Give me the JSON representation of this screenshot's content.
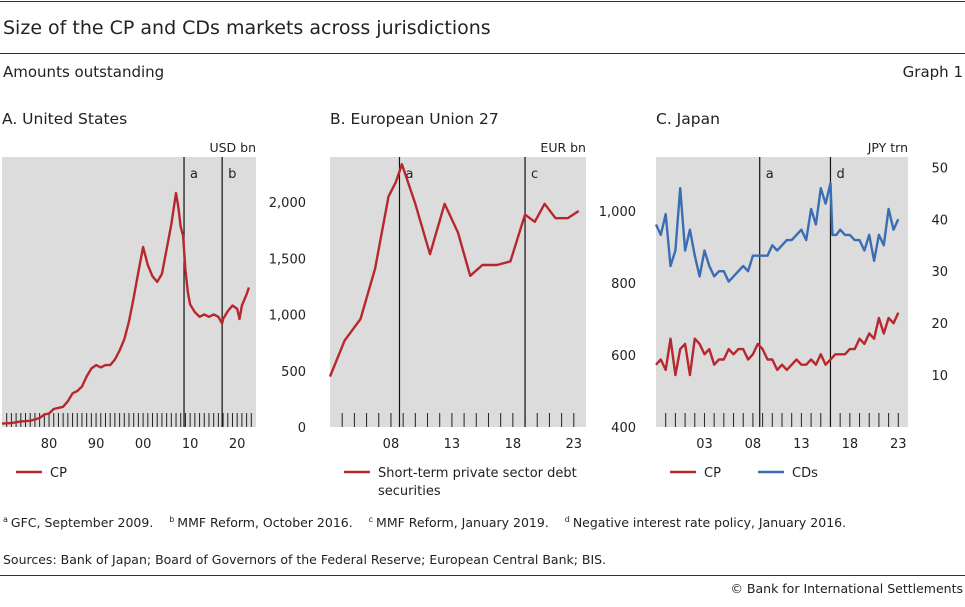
{
  "title": "Size of the CP and CDs markets across jurisdictions",
  "subtitle": "Amounts outstanding",
  "graph_number": "Graph 1",
  "footnotes": [
    {
      "mark": "a",
      "text": "GFC, September 2009."
    },
    {
      "mark": "b",
      "text": "MMF Reform, October 2016."
    },
    {
      "mark": "c",
      "text": "MMF Reform, January 2019."
    },
    {
      "mark": "d",
      "text": "Negative interest rate policy, January 2016."
    }
  ],
  "sources": "Sources: Bank of Japan; Board of Governors of the Federal Reserve; European Central Bank; BIS.",
  "copyright": "© Bank for International Settlements",
  "colors": {
    "cp": "#b7282e",
    "cds": "#3b6db4",
    "panel_bg": "#dcdcdc"
  },
  "chart_data": [
    {
      "type": "line",
      "title": "A. United States",
      "unit": "USD bn",
      "xlim": [
        1970,
        2024
      ],
      "ylim": [
        0,
        2400
      ],
      "yticks": [
        0,
        500,
        1000,
        1500,
        2000
      ],
      "ytick_labels": [
        "0",
        "500",
        "1,000",
        "1,500",
        "2,000"
      ],
      "xticks": [
        1980,
        1990,
        2000,
        2010,
        2020
      ],
      "xtick_labels": [
        "80",
        "90",
        "00",
        "10",
        "20"
      ],
      "grid": false,
      "events": [
        {
          "label": "a",
          "x": 2008.7
        },
        {
          "label": "b",
          "x": 2016.8
        }
      ],
      "legend": [
        "CP"
      ],
      "series": [
        {
          "name": "CP",
          "color": "#b7282e",
          "points": [
            [
              1970,
              30
            ],
            [
              1972,
              35
            ],
            [
              1974,
              50
            ],
            [
              1976,
              55
            ],
            [
              1978,
              80
            ],
            [
              1979,
              110
            ],
            [
              1980,
              120
            ],
            [
              1981,
              160
            ],
            [
              1982,
              170
            ],
            [
              1983,
              180
            ],
            [
              1984,
              230
            ],
            [
              1985,
              300
            ],
            [
              1986,
              320
            ],
            [
              1987,
              360
            ],
            [
              1988,
              450
            ],
            [
              1989,
              520
            ],
            [
              1990,
              550
            ],
            [
              1991,
              530
            ],
            [
              1992,
              550
            ],
            [
              1993,
              550
            ],
            [
              1994,
              600
            ],
            [
              1995,
              680
            ],
            [
              1996,
              780
            ],
            [
              1997,
              940
            ],
            [
              1998,
              1150
            ],
            [
              1999,
              1380
            ],
            [
              2000,
              1600
            ],
            [
              2001,
              1440
            ],
            [
              2002,
              1340
            ],
            [
              2003,
              1290
            ],
            [
              2004,
              1360
            ],
            [
              2005,
              1580
            ],
            [
              2006,
              1800
            ],
            [
              2007,
              2080
            ],
            [
              2007.5,
              1950
            ],
            [
              2008,
              1780
            ],
            [
              2008.5,
              1700
            ],
            [
              2009,
              1400
            ],
            [
              2009.5,
              1200
            ],
            [
              2010,
              1090
            ],
            [
              2011,
              1020
            ],
            [
              2012,
              980
            ],
            [
              2013,
              1000
            ],
            [
              2014,
              980
            ],
            [
              2015,
              1000
            ],
            [
              2016,
              980
            ],
            [
              2016.8,
              920
            ],
            [
              2017,
              960
            ],
            [
              2018,
              1030
            ],
            [
              2019,
              1080
            ],
            [
              2020,
              1050
            ],
            [
              2020.5,
              960
            ],
            [
              2021,
              1080
            ],
            [
              2022,
              1180
            ],
            [
              2022.5,
              1240
            ]
          ]
        }
      ]
    },
    {
      "type": "line",
      "title": "B. European Union 27",
      "unit": "EUR bn",
      "xlim": [
        2003,
        2024
      ],
      "ylim": [
        400,
        1150
      ],
      "yticks": [
        400,
        600,
        800,
        1000
      ],
      "ytick_labels": [
        "400",
        "600",
        "800",
        "1,000"
      ],
      "xticks": [
        2008,
        2013,
        2018,
        2023
      ],
      "xtick_labels": [
        "08",
        "13",
        "18",
        "23"
      ],
      "grid": false,
      "events": [
        {
          "label": "a",
          "x": 2008.7
        },
        {
          "label": "c",
          "x": 2019
        }
      ],
      "legend": [
        "Short-term private sector debt securities"
      ],
      "series": [
        {
          "name": "Short-term private sector debt securities",
          "color": "#b7282e",
          "points": [
            [
              2003,
              540
            ],
            [
              2004.2,
              640
            ],
            [
              2005.5,
              700
            ],
            [
              2006.7,
              840
            ],
            [
              2007.8,
              1040
            ],
            [
              2008.4,
              1080
            ],
            [
              2008.9,
              1130
            ],
            [
              2010,
              1020
            ],
            [
              2011.2,
              880
            ],
            [
              2012.4,
              1020
            ],
            [
              2013.5,
              940
            ],
            [
              2014.5,
              820
            ],
            [
              2015.5,
              850
            ],
            [
              2016.7,
              850
            ],
            [
              2017.8,
              860
            ],
            [
              2019,
              990
            ],
            [
              2019.8,
              970
            ],
            [
              2020.6,
              1020
            ],
            [
              2021.5,
              980
            ],
            [
              2022.5,
              980
            ],
            [
              2023.4,
              1000
            ]
          ]
        }
      ]
    },
    {
      "type": "line",
      "title": "C. Japan",
      "unit": "JPY trn",
      "xlim": [
        1998,
        2024
      ],
      "ylim": [
        0,
        52
      ],
      "yticks": [
        10,
        20,
        30,
        40,
        50
      ],
      "ytick_labels": [
        "10",
        "20",
        "30",
        "40",
        "50"
      ],
      "xticks": [
        2003,
        2008,
        2013,
        2018,
        2023
      ],
      "xtick_labels": [
        "03",
        "08",
        "13",
        "18",
        "23"
      ],
      "grid": false,
      "events": [
        {
          "label": "a",
          "x": 2008.7
        },
        {
          "label": "d",
          "x": 2016
        }
      ],
      "legend": [
        "CP",
        "CDs"
      ],
      "series": [
        {
          "name": "CP",
          "color": "#b7282e",
          "points": [
            [
              1998,
              12
            ],
            [
              1998.5,
              13
            ],
            [
              1999,
              11
            ],
            [
              1999.5,
              17
            ],
            [
              2000,
              10
            ],
            [
              2000.5,
              15
            ],
            [
              2001,
              16
            ],
            [
              2001.5,
              10
            ],
            [
              2002,
              17
            ],
            [
              2002.5,
              16
            ],
            [
              2003,
              14
            ],
            [
              2003.5,
              15
            ],
            [
              2004,
              12
            ],
            [
              2004.5,
              13
            ],
            [
              2005,
              13
            ],
            [
              2005.5,
              15
            ],
            [
              2006,
              14
            ],
            [
              2006.5,
              15
            ],
            [
              2007,
              15
            ],
            [
              2007.5,
              13
            ],
            [
              2008,
              14
            ],
            [
              2008.5,
              16
            ],
            [
              2009,
              15
            ],
            [
              2009.5,
              13
            ],
            [
              2010,
              13
            ],
            [
              2010.5,
              11
            ],
            [
              2011,
              12
            ],
            [
              2011.5,
              11
            ],
            [
              2012,
              12
            ],
            [
              2012.5,
              13
            ],
            [
              2013,
              12
            ],
            [
              2013.5,
              12
            ],
            [
              2014,
              13
            ],
            [
              2014.5,
              12
            ],
            [
              2015,
              14
            ],
            [
              2015.5,
              12
            ],
            [
              2016,
              13
            ],
            [
              2016.5,
              14
            ],
            [
              2017,
              14
            ],
            [
              2017.5,
              14
            ],
            [
              2018,
              15
            ],
            [
              2018.5,
              15
            ],
            [
              2019,
              17
            ],
            [
              2019.5,
              16
            ],
            [
              2020,
              18
            ],
            [
              2020.5,
              17
            ],
            [
              2021,
              21
            ],
            [
              2021.5,
              18
            ],
            [
              2022,
              21
            ],
            [
              2022.5,
              20
            ],
            [
              2023,
              22
            ]
          ]
        },
        {
          "name": "CDs",
          "color": "#3b6db4",
          "points": [
            [
              1998,
              39
            ],
            [
              1998.5,
              37
            ],
            [
              1999,
              41
            ],
            [
              1999.5,
              31
            ],
            [
              2000,
              34
            ],
            [
              2000.5,
              46
            ],
            [
              2001,
              34
            ],
            [
              2001.5,
              38
            ],
            [
              2002,
              33
            ],
            [
              2002.5,
              29
            ],
            [
              2003,
              34
            ],
            [
              2003.5,
              31
            ],
            [
              2004,
              29
            ],
            [
              2004.5,
              30
            ],
            [
              2005,
              30
            ],
            [
              2005.5,
              28
            ],
            [
              2006,
              29
            ],
            [
              2006.5,
              30
            ],
            [
              2007,
              31
            ],
            [
              2007.5,
              30
            ],
            [
              2008,
              33
            ],
            [
              2008.5,
              33
            ],
            [
              2009,
              33
            ],
            [
              2009.5,
              33
            ],
            [
              2010,
              35
            ],
            [
              2010.5,
              34
            ],
            [
              2011,
              35
            ],
            [
              2011.5,
              36
            ],
            [
              2012,
              36
            ],
            [
              2012.5,
              37
            ],
            [
              2013,
              38
            ],
            [
              2013.5,
              36
            ],
            [
              2014,
              42
            ],
            [
              2014.5,
              39
            ],
            [
              2015,
              46
            ],
            [
              2015.5,
              43
            ],
            [
              2016,
              47
            ],
            [
              2016.2,
              37
            ],
            [
              2016.6,
              37
            ],
            [
              2017,
              38
            ],
            [
              2017.5,
              37
            ],
            [
              2018,
              37
            ],
            [
              2018.5,
              36
            ],
            [
              2019,
              36
            ],
            [
              2019.5,
              34
            ],
            [
              2020,
              37
            ],
            [
              2020.5,
              32
            ],
            [
              2021,
              37
            ],
            [
              2021.5,
              35
            ],
            [
              2022,
              42
            ],
            [
              2022.5,
              38
            ],
            [
              2023,
              40
            ]
          ]
        }
      ]
    }
  ]
}
